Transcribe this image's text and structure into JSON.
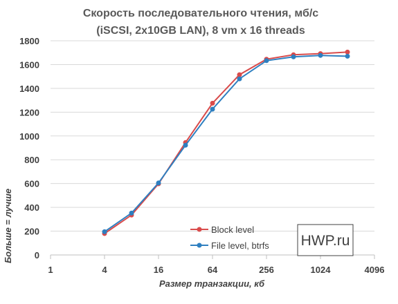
{
  "chart_data": {
    "type": "line",
    "title": [
      "Скорость последовательного чтения, мб/с",
      "(iSCSI, 2x10GB LAN), 8 vm x 16 threads"
    ],
    "xlabel": "Размер транзакции, кб",
    "ylabel": "Больше = лучше",
    "xscale": "log2",
    "xlim": [
      1,
      4096
    ],
    "xticks": [
      "1",
      "4",
      "16",
      "64",
      "256",
      "1024",
      "4096"
    ],
    "ylim": [
      0,
      1800
    ],
    "yticks": [
      "0",
      "200",
      "400",
      "600",
      "800",
      "1000",
      "1200",
      "1400",
      "1600",
      "1800"
    ],
    "grid": "horizontal",
    "legend_position": "lower-right",
    "x": [
      4,
      8,
      16,
      32,
      64,
      128,
      256,
      512,
      1024,
      2048
    ],
    "series": [
      {
        "name": "Block level",
        "color": "#d94b4b",
        "values": [
          180,
          335,
          598,
          945,
          1275,
          1515,
          1645,
          1682,
          1692,
          1705
        ]
      },
      {
        "name": "File level, btrfs",
        "color": "#2e7fc0",
        "values": [
          195,
          352,
          605,
          922,
          1225,
          1480,
          1633,
          1665,
          1677,
          1670
        ]
      }
    ]
  },
  "brand": "HWP.ru"
}
